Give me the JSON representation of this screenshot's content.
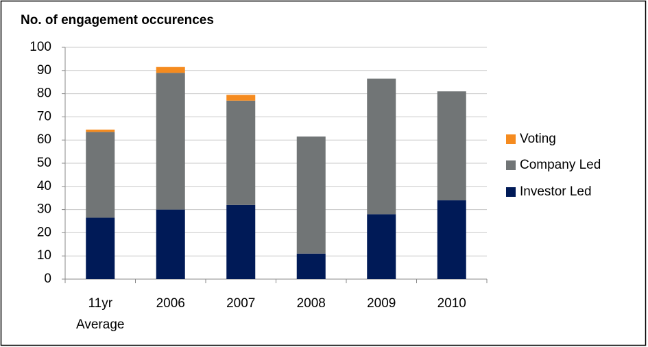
{
  "chart_data": {
    "type": "stacked_bar",
    "title": "No. of engagement occurences",
    "categories": [
      "11yr Average",
      "2006",
      "2007",
      "2008",
      "2009",
      "2010"
    ],
    "series": [
      {
        "name": "Investor Led",
        "color": "#001a57",
        "values": [
          26.5,
          30,
          32,
          11,
          28,
          34
        ]
      },
      {
        "name": "Company Led",
        "color": "#717576",
        "values": [
          37,
          59,
          45,
          50.5,
          58.5,
          47
        ]
      },
      {
        "name": "Voting",
        "color": "#f58b1f",
        "values": [
          1,
          2.5,
          2.5,
          0,
          0,
          0
        ]
      }
    ],
    "ylim": [
      0,
      100
    ],
    "yticks": [
      0,
      10,
      20,
      30,
      40,
      50,
      60,
      70,
      80,
      90,
      100
    ],
    "grid": true,
    "legend": "right"
  }
}
